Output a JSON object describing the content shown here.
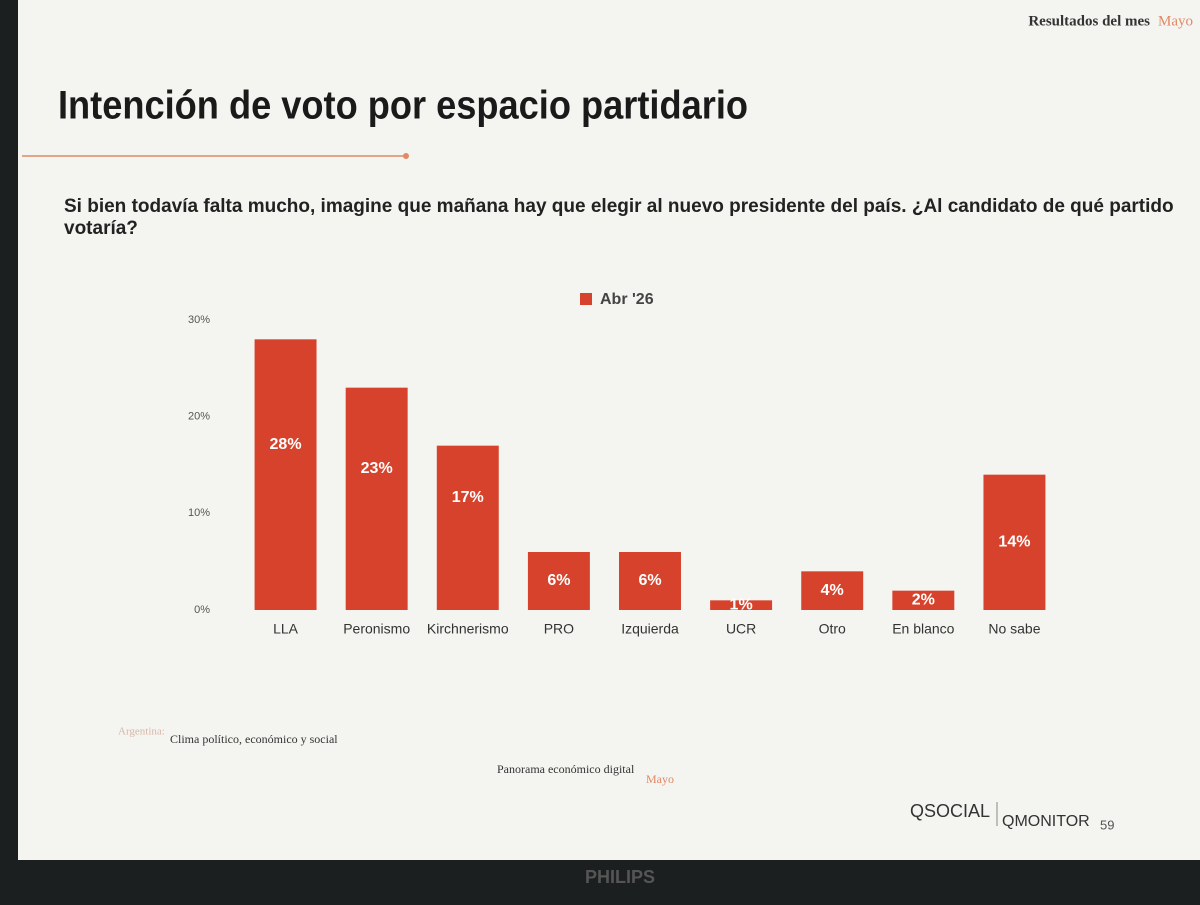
{
  "header": {
    "section": "Resultados del mes",
    "month": "Mayo"
  },
  "chart_data": {
    "type": "bar",
    "title": "Intención de voto por espacio partidario",
    "subtitle": "Si bien todavía falta mucho, imagine que mañana hay que elegir al nuevo presidente del país. ¿Al candidato de qué partido votaría?",
    "categories": [
      "LLA",
      "Peronismo",
      "Kirchnerismo",
      "PRO",
      "Izquierda",
      "UCR",
      "Otro",
      "En blanco",
      "No sabe"
    ],
    "series": [
      {
        "name": "Abr '26",
        "color": "#d6422b",
        "values": [
          28,
          23,
          17,
          6,
          6,
          1,
          4,
          2,
          14
        ],
        "value_labels": [
          "28%",
          "23%",
          "17%",
          "6%",
          "6%",
          "1%",
          "4%",
          "2%",
          "14%"
        ]
      }
    ],
    "ylim": [
      0,
      30
    ],
    "yticks": [
      {
        "value": 0,
        "label": "0%"
      },
      {
        "value": 10,
        "label": "10%"
      },
      {
        "value": 20,
        "label": "20%"
      },
      {
        "value": 30,
        "label": "30%"
      }
    ],
    "grid": false,
    "legend": "top"
  },
  "footer": {
    "country": "Argentina:",
    "report": "Clima político, económico y social",
    "publication": "Panorama económico digital",
    "month": "Mayo",
    "brand1": "QSOCIAL",
    "brand2": "QMONITOR",
    "page": "59"
  },
  "monitor": {
    "brand": "PHILIPS"
  }
}
